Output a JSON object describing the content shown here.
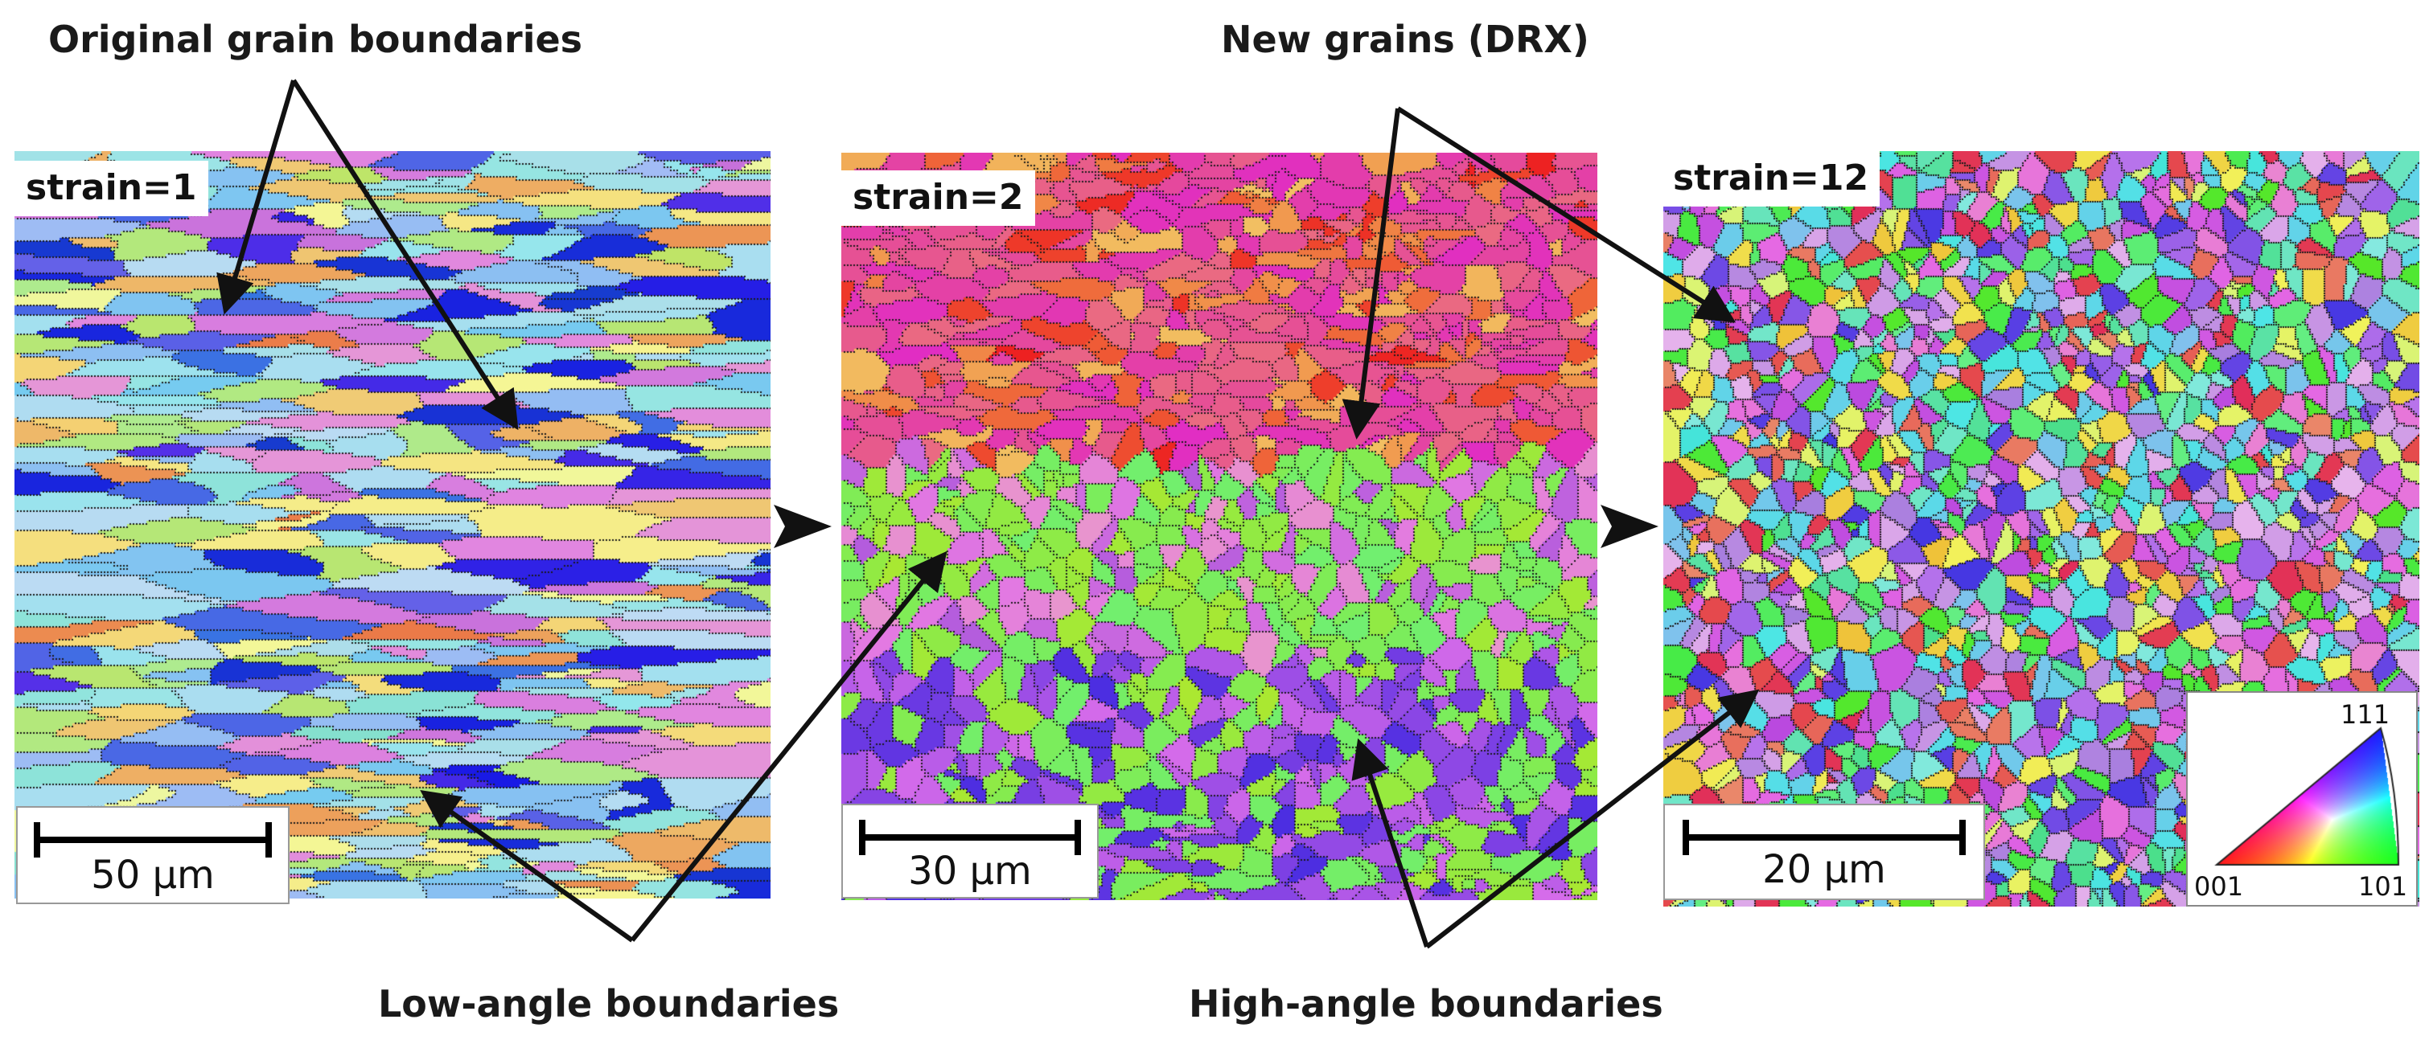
{
  "annotations": {
    "original_grain_boundaries": "Original grain boundaries",
    "new_grains": "New grains (DRX)",
    "low_angle_boundaries": "Low-angle boundaries",
    "high_angle_boundaries": "High-angle boundaries"
  },
  "panels": [
    {
      "strain_label": "strain=1",
      "scale_label": "50 μm"
    },
    {
      "strain_label": "strain=2",
      "scale_label": "30 μm"
    },
    {
      "strain_label": "strain=12",
      "scale_label": "20 μm"
    }
  ],
  "ipf_legend": {
    "top": "111",
    "left": "001",
    "right": "101"
  },
  "colors": {
    "arrow": "#111111",
    "ipf_red_001": "#e8303a",
    "ipf_green_101": "#7ef04a",
    "ipf_blue_111": "#4a4ae8",
    "magenta": "#d94bd0",
    "cyan": "#8ad8f0",
    "yellow": "#f0e880"
  },
  "icons": [
    "arrow-right-icon",
    "arrow-right-icon"
  ]
}
